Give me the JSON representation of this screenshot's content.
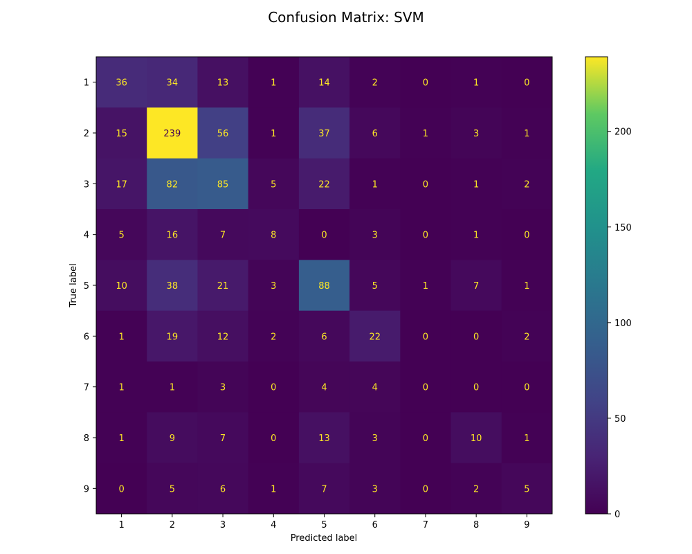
{
  "chart_data": {
    "type": "heatmap",
    "title": "Confusion Matrix: SVM",
    "xlabel": "Predicted label",
    "ylabel": "True label",
    "x_categories": [
      "1",
      "2",
      "3",
      "4",
      "5",
      "6",
      "7",
      "8",
      "9"
    ],
    "y_categories": [
      "1",
      "2",
      "3",
      "4",
      "5",
      "6",
      "7",
      "8",
      "9"
    ],
    "matrix": [
      [
        36,
        34,
        13,
        1,
        14,
        2,
        0,
        1,
        0
      ],
      [
        15,
        239,
        56,
        1,
        37,
        6,
        1,
        3,
        1
      ],
      [
        17,
        82,
        85,
        5,
        22,
        1,
        0,
        1,
        2
      ],
      [
        5,
        16,
        7,
        8,
        0,
        3,
        0,
        1,
        0
      ],
      [
        10,
        38,
        21,
        3,
        88,
        5,
        1,
        7,
        1
      ],
      [
        1,
        19,
        12,
        2,
        6,
        22,
        0,
        0,
        2
      ],
      [
        1,
        1,
        3,
        0,
        4,
        4,
        0,
        0,
        0
      ],
      [
        1,
        9,
        7,
        0,
        13,
        3,
        0,
        10,
        1
      ],
      [
        0,
        5,
        6,
        1,
        7,
        3,
        0,
        2,
        5
      ]
    ],
    "colormap": "viridis",
    "color_range": [
      0,
      239
    ],
    "colorbar_ticks": [
      0,
      50,
      100,
      150,
      200
    ],
    "text_color_dark_cells": "#fde725",
    "text_color_light_cells": "#440154",
    "legend": "colorbar-right",
    "grid": false
  }
}
